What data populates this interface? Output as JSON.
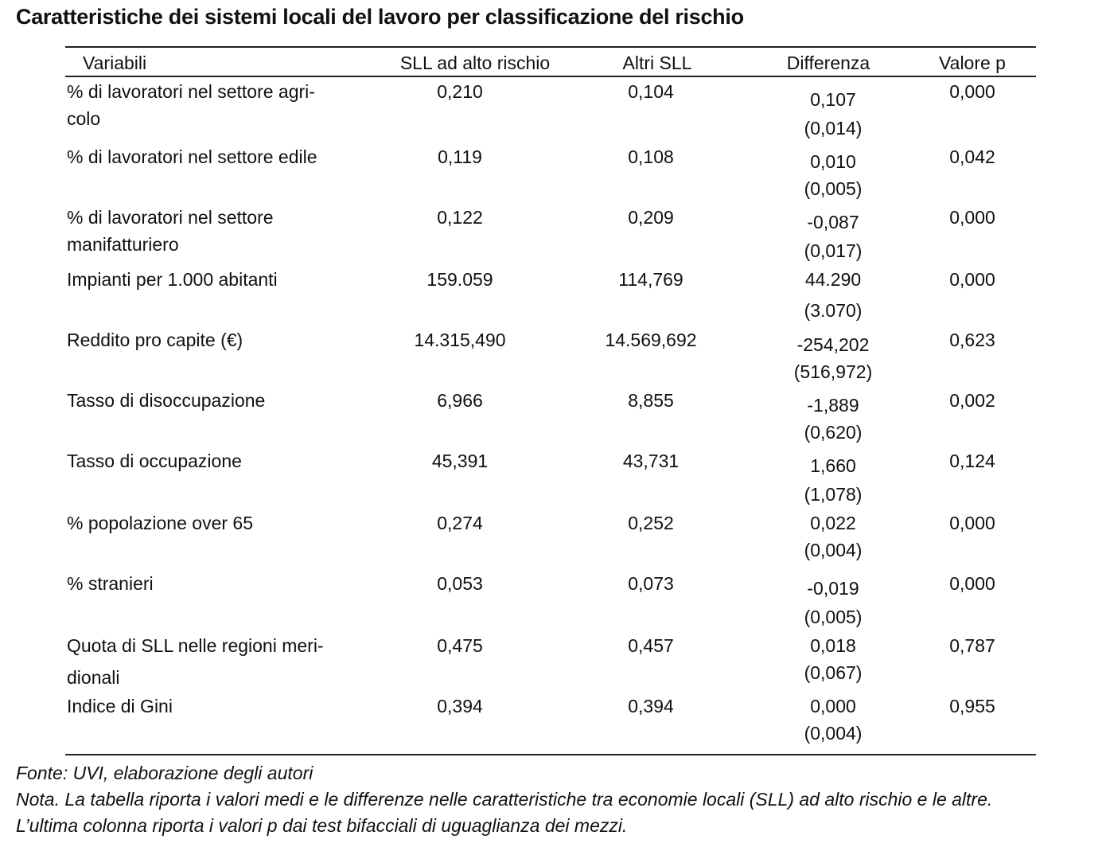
{
  "title": "Caratteristiche dei sistemi locali del lavoro per classificazione del rischio",
  "headers": [
    "Variabili",
    "SLL ad alto rischio",
    "Altri SLL",
    "Differenza",
    "Valore p"
  ],
  "rows": [
    {
      "variable": [
        "% di lavoratori nel settore agri-",
        "colo"
      ],
      "high_risk": "0,210",
      "others": "0,104",
      "difference": "0,107",
      "se": "(0,014)",
      "p": "0,000"
    },
    {
      "variable": [
        "% di lavoratori nel settore edile"
      ],
      "high_risk": "0,119",
      "others": "0,108",
      "difference": "0,010",
      "se": "(0,005)",
      "p": "0,042"
    },
    {
      "variable": [
        "% di lavoratori nel settore",
        "manifatturiero"
      ],
      "high_risk": "0,122",
      "others": "0,209",
      "difference": "-0,087",
      "se": "(0,017)",
      "p": "0,000"
    },
    {
      "variable": [
        "Impianti per 1.000 abitanti"
      ],
      "high_risk": "159.059",
      "others": "114,769",
      "difference": "44.290",
      "se": "(3.070)",
      "p": "0,000"
    },
    {
      "variable": [
        "Reddito pro capite (€)"
      ],
      "high_risk": "14.315,490",
      "others": "14.569,692",
      "difference": "-254,202",
      "se": "(516,972)",
      "p": "0,623"
    },
    {
      "variable": [
        "Tasso di disoccupazione"
      ],
      "high_risk": "6,966",
      "others": "8,855",
      "difference": "-1,889",
      "se": "(0,620)",
      "p": "0,002"
    },
    {
      "variable": [
        "Tasso di occupazione"
      ],
      "high_risk": "45,391",
      "others": "43,731",
      "difference": "1,660",
      "se": "(1,078)",
      "p": "0,124"
    },
    {
      "variable": [
        "% popolazione over 65"
      ],
      "high_risk": "0,274",
      "others": "0,252",
      "difference": "0,022",
      "se": "(0,004)",
      "p": "0,000"
    },
    {
      "variable": [
        "% stranieri"
      ],
      "high_risk": "0,053",
      "others": "0,073",
      "difference": "-0,019",
      "se": "(0,005)",
      "p": "0,000"
    },
    {
      "variable": [
        "Quota di SLL nelle regioni meri-",
        "dionali"
      ],
      "high_risk": "0,475",
      "others": "0,457",
      "difference": "0,018",
      "se": "(0,067)",
      "p": "0,787"
    },
    {
      "variable": [
        "Indice di Gini"
      ],
      "high_risk": "0,394",
      "others": "0,394",
      "difference": "0,000",
      "se": "(0,004)",
      "p": "0,955"
    }
  ],
  "notes": [
    "Fonte: UVI, elaborazione degli autori",
    "Nota. La tabella riporta i valori medi e le differenze nelle caratteristiche tra economie locali (SLL) ad alto rischio e le altre.",
    "L’ultima colonna riporta i valori p dai test bifacciali di uguaglianza dei mezzi."
  ]
}
